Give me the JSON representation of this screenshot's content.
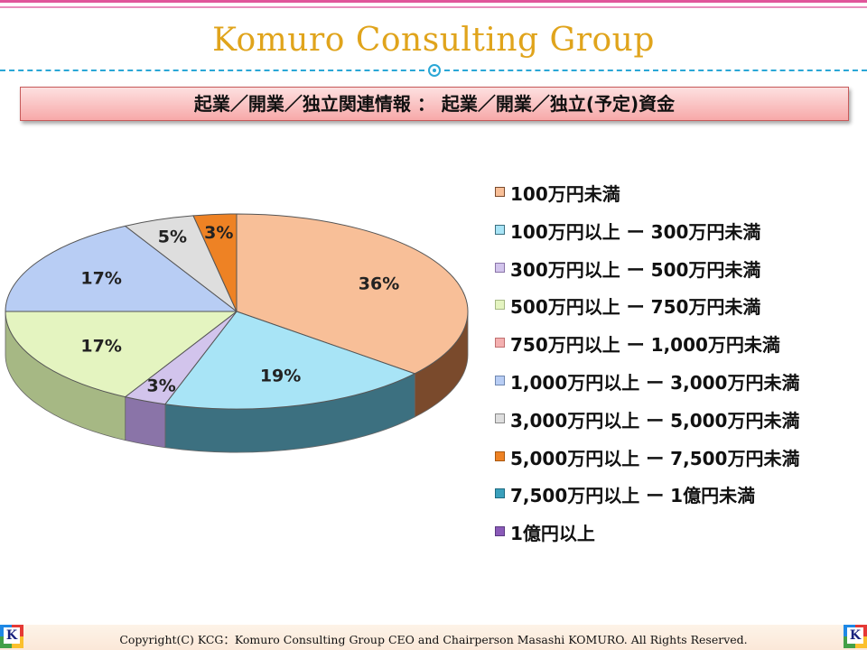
{
  "header": {
    "brand": "Komuro Consulting Group",
    "banner_title": "起業／開業／独立関連情報 ： 起業／開業／独立(予定)資金"
  },
  "footer": {
    "copyright": "Copyright(C) KCG：Komuro Consulting Group CEO and Chairperson Masashi KOMURO. All Rights Reserved.",
    "logo_letter": "K"
  },
  "chart_data": {
    "type": "pie",
    "title": "",
    "unit": "%",
    "categories": [
      "100万円未満",
      "100万円以上 ー 300万円未満",
      "300万円以上 ー 500万円未満",
      "500万円以上 ー 750万円未満",
      "750万円以上 ー 1,000万円未満",
      "1,000万円以上 ー 3,000万円未満",
      "3,000万円以上 ー 5,000万円未満",
      "5,000万円以上 ー 7,500万円未満",
      "7,500万円以上 ー 1億円未満",
      "1億円以上"
    ],
    "values": [
      36,
      19,
      3,
      17,
      0,
      17,
      5,
      3,
      0,
      0
    ],
    "data_labels": [
      "36%",
      "19%",
      "3%",
      "17%",
      "",
      "17%",
      "5%",
      "3%",
      "",
      ""
    ],
    "colors": [
      "#f8bf98",
      "#a8e4f6",
      "#d2c4ec",
      "#e4f4c0",
      "#f4b0b0",
      "#b8cdf4",
      "#dedede",
      "#ee8224",
      "#3aa0bc",
      "#8a5ab8"
    ],
    "side_colors": [
      "#7a4a2c",
      "#3c7080",
      "#8a74a8",
      "#a6b884",
      "#c07070",
      "#7088b0",
      "#8a8a8a",
      "#a85810",
      "#1e6a80",
      "#5a3a80"
    ],
    "legend_position": "right",
    "style": "3d-tilted"
  }
}
